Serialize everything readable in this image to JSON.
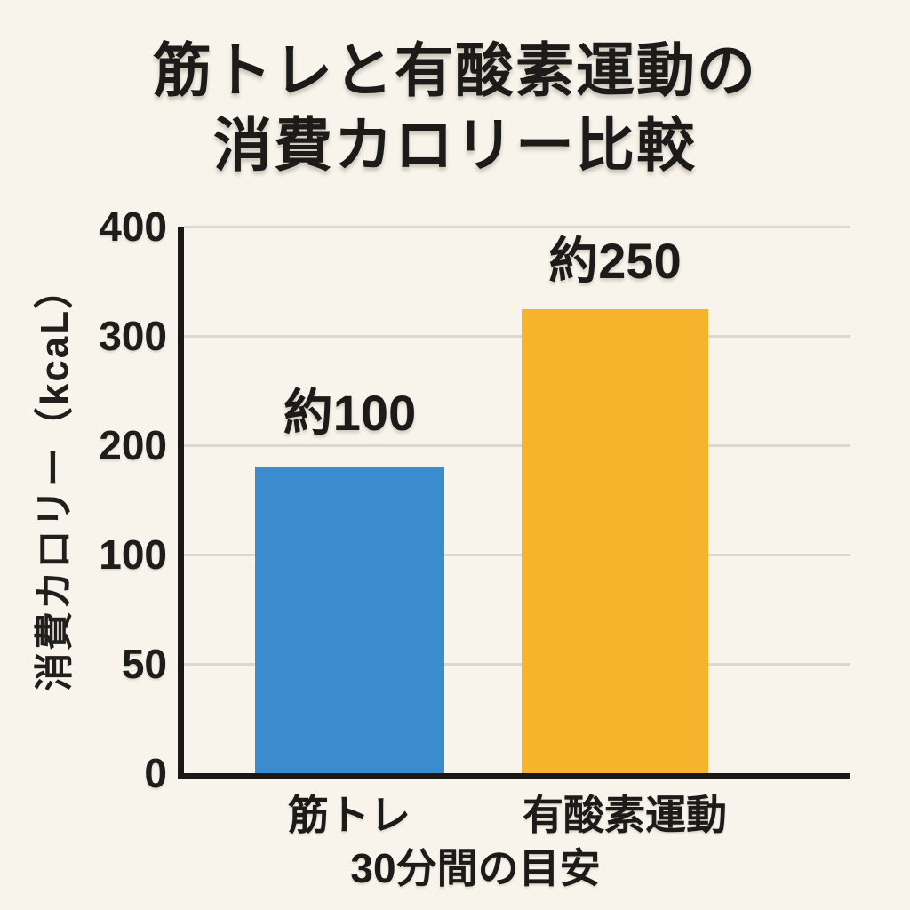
{
  "title": {
    "line1": "筋トレと有酸素運動の",
    "line2": "消費カロリー比較"
  },
  "chart_data": {
    "type": "bar",
    "title": "筋トレと有酸素運動の消費カロリー比較",
    "categories": [
      "筋トレ",
      "有酸素運動"
    ],
    "values": [
      100,
      250
    ],
    "bar_labels": [
      "約100",
      "約250"
    ],
    "bar_colors": [
      "#3b8cce",
      "#f5b42c"
    ],
    "ylabel": "消費カロリー（kcaL）",
    "xlabel": "30分間の目安",
    "yticks": [
      "400",
      "300",
      "200",
      "100",
      "50",
      "0"
    ],
    "ylim": [
      0,
      400
    ],
    "grid": true,
    "legend": "none",
    "background_color": "#f8f4eb",
    "gridline_color": "#dbd8d1",
    "axis_color": "#191816",
    "text_color": "#1c1b19"
  }
}
